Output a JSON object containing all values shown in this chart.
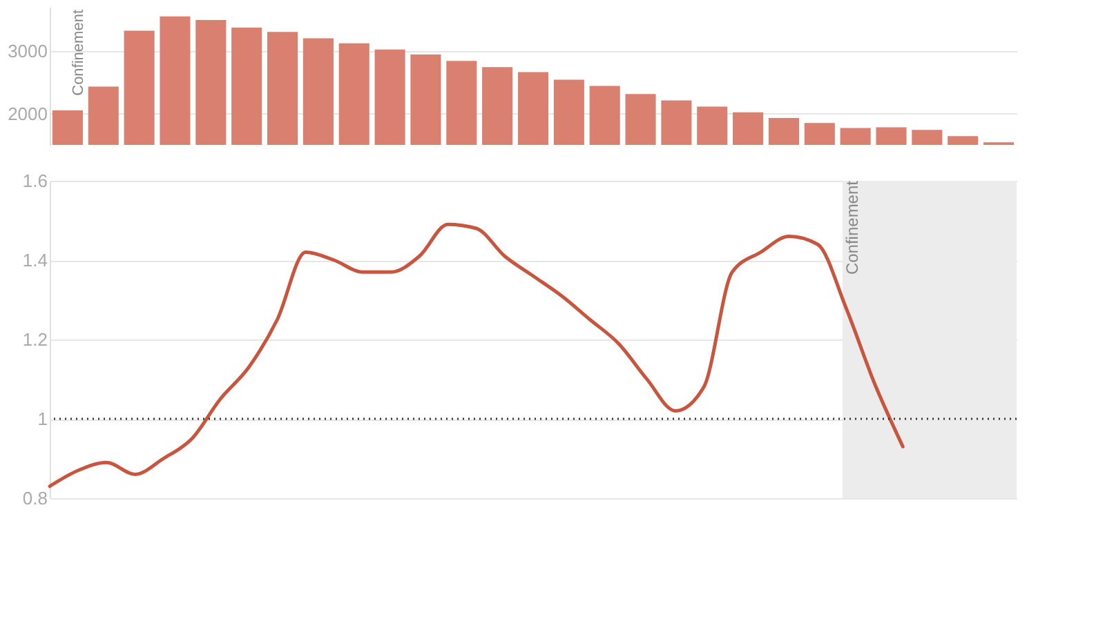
{
  "chart_data": [
    {
      "type": "bar",
      "categories": [
        null,
        null,
        null,
        null,
        null,
        null,
        null,
        null,
        null,
        null,
        null,
        null,
        null,
        null,
        null,
        null,
        null,
        null,
        null,
        null,
        null,
        null,
        null,
        null,
        null,
        null,
        null
      ],
      "series": [
        {
          "color": "#d98070",
          "values": [
            2050,
            2430,
            3320,
            3550,
            3490,
            3370,
            3300,
            3200,
            3120,
            3020,
            2940,
            2840,
            2740,
            2660,
            2540,
            2440,
            2310,
            2210,
            2110,
            2020,
            1930,
            1850,
            1770,
            1780,
            1740,
            1640,
            1540
          ]
        }
      ],
      "ylim": [
        1500,
        3700
      ],
      "yticks": [
        2000,
        3000
      ],
      "grid": "y",
      "tick_labels": "y",
      "annotations": [
        "Confinement"
      ]
    },
    {
      "type": "line",
      "categories": [
        null,
        null,
        null,
        null,
        null,
        null,
        null,
        null,
        null,
        null,
        null,
        null,
        null,
        null,
        null,
        null,
        null,
        null,
        null,
        null,
        null,
        null,
        null,
        null,
        null,
        null,
        null,
        null,
        null,
        null,
        null,
        null,
        null,
        null,
        null
      ],
      "series": [
        {
          "color": "#c8553d",
          "values": [
            0.83,
            0.87,
            0.89,
            0.86,
            0.9,
            0.95,
            1.05,
            1.13,
            1.25,
            1.42,
            1.4,
            1.37,
            1.37,
            1.41,
            1.49,
            1.48,
            1.41,
            1.36,
            1.31,
            1.25,
            1.19,
            1.1,
            1.02,
            1.08,
            1.37,
            1.42,
            1.46,
            1.44,
            1.28,
            1.09,
            0.93,
            null,
            null,
            null,
            null
          ]
        }
      ],
      "ylim": [
        0.8,
        1.6
      ],
      "yticks": [
        0.8,
        1,
        1.2,
        1.4,
        1.6
      ],
      "grid": "y",
      "tick_labels": "y",
      "ref_lines": [
        {
          "axis": "y",
          "value": 1,
          "color": "#333333",
          "line_style": "dotted"
        }
      ],
      "annotations": [
        "Confinement"
      ]
    }
  ]
}
